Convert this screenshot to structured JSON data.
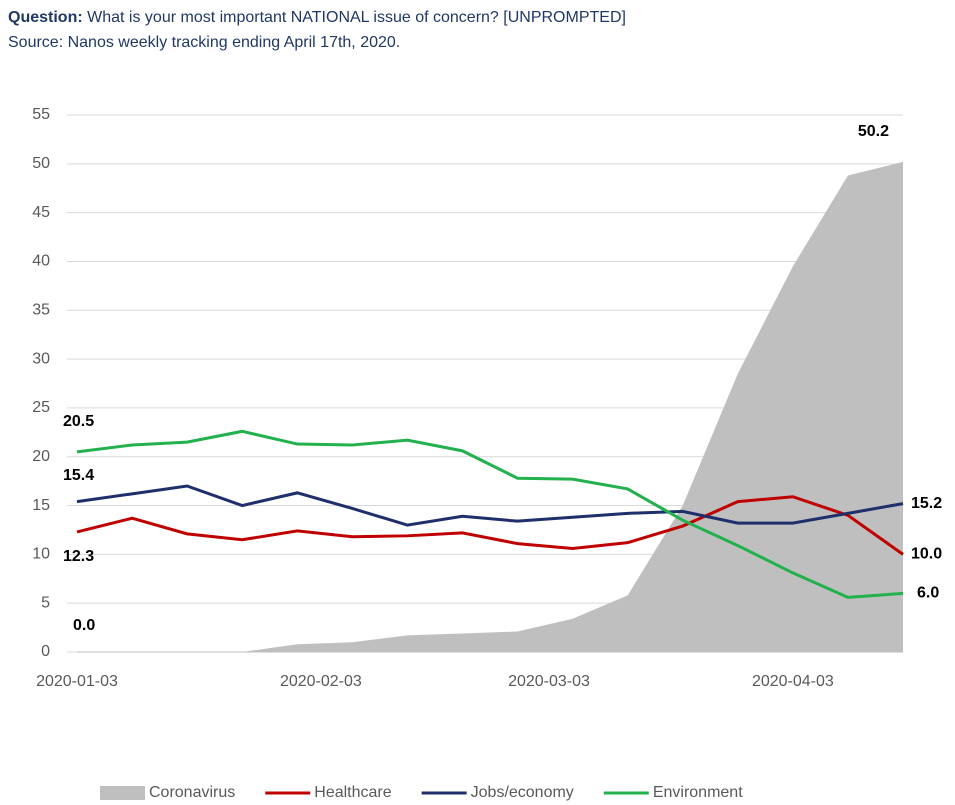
{
  "chart_data": {
    "type": "line",
    "title_label": "Question:",
    "title": "What is your most important NATIONAL issue of concern? [UNPROMPTED]",
    "subtitle": "Source: Nanos weekly tracking ending April 17th, 2020.",
    "x": [
      "2020-01-03",
      "2020-01-10",
      "2020-01-17",
      "2020-01-24",
      "2020-01-31",
      "2020-02-07",
      "2020-02-14",
      "2020-02-21",
      "2020-02-28",
      "2020-03-06",
      "2020-03-13",
      "2020-03-20",
      "2020-03-27",
      "2020-04-03",
      "2020-04-10",
      "2020-04-17"
    ],
    "xlim": [
      "2020-01-03",
      "2020-04-17"
    ],
    "xticks": [
      "2020-01-03",
      "2020-02-03",
      "2020-03-03",
      "2020-04-03"
    ],
    "ylim": [
      0,
      55
    ],
    "yticks": [
      0,
      5,
      10,
      15,
      20,
      25,
      30,
      35,
      40,
      45,
      50,
      55
    ],
    "grid": true,
    "legend": "bottom",
    "series": [
      {
        "name": "Coronavirus",
        "kind": "area",
        "color": "#bfbfbf",
        "values": [
          0,
          0,
          0,
          0,
          0.8,
          1.0,
          1.7,
          1.9,
          2.1,
          3.4,
          5.8,
          15,
          28.5,
          39.5,
          48.8,
          50.2
        ],
        "value_labels": [
          "0.0",
          null,
          null,
          null,
          null,
          null,
          null,
          null,
          null,
          null,
          null,
          null,
          null,
          null,
          null,
          "50.2"
        ]
      },
      {
        "name": "Healthcare",
        "kind": "line",
        "color": "#c00000",
        "values": [
          12.3,
          13.7,
          12.1,
          11.5,
          12.4,
          11.8,
          11.9,
          12.2,
          11.1,
          10.6,
          11.2,
          12.9,
          15.4,
          15.9,
          14.0,
          10.0
        ],
        "value_labels": [
          "12.3",
          null,
          null,
          null,
          null,
          null,
          null,
          null,
          null,
          null,
          null,
          null,
          null,
          null,
          null,
          "10.0"
        ]
      },
      {
        "name": "Jobs/economy",
        "kind": "line",
        "color": "#1f2f6b",
        "values": [
          15.4,
          16.2,
          17.0,
          15.0,
          16.3,
          14.7,
          13.0,
          13.9,
          13.4,
          13.8,
          14.2,
          14.4,
          13.2,
          13.2,
          14.2,
          15.2
        ],
        "value_labels": [
          "15.4",
          null,
          null,
          null,
          null,
          null,
          null,
          null,
          null,
          null,
          null,
          null,
          null,
          null,
          null,
          "15.2"
        ]
      },
      {
        "name": "Environment",
        "kind": "line",
        "color": "#22b14c",
        "values": [
          20.5,
          21.2,
          21.5,
          22.6,
          21.3,
          21.2,
          21.7,
          20.6,
          17.8,
          17.7,
          16.7,
          13.5,
          10.9,
          8.1,
          5.6,
          6.0
        ],
        "value_labels": [
          "20.5",
          null,
          null,
          null,
          null,
          null,
          null,
          null,
          null,
          null,
          null,
          null,
          null,
          null,
          null,
          "6.0"
        ]
      }
    ]
  }
}
